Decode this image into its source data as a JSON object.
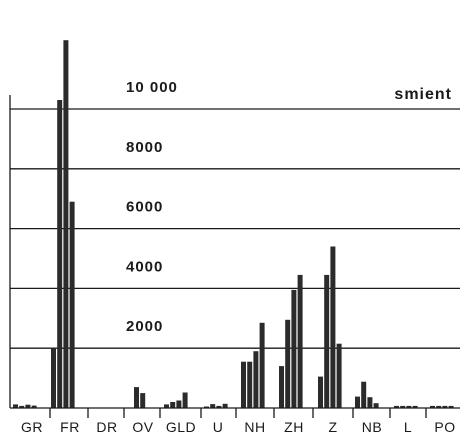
{
  "chart_data": {
    "type": "bar",
    "unit_label": "smient",
    "ylim": [
      0,
      11500
    ],
    "yticks": [
      2000,
      4000,
      6000,
      8000,
      10000
    ],
    "ytick_labels": [
      "2000",
      "4000",
      "6000",
      "8000",
      "10 000"
    ],
    "grid": true,
    "categories": [
      "GR",
      "FR",
      "DR",
      "OV",
      "GLD",
      "U",
      "NH",
      "ZH",
      "Z",
      "NB",
      "L",
      "PO"
    ],
    "groups": [
      {
        "category": "GR",
        "values": [
          120,
          70,
          110,
          80
        ]
      },
      {
        "category": "FR",
        "values": [
          2000,
          10300,
          12300,
          6900
        ]
      },
      {
        "category": "DR",
        "values": [
          0,
          0,
          0,
          0
        ]
      },
      {
        "category": "OV",
        "values": [
          700,
          500
        ]
      },
      {
        "category": "GLD",
        "values": [
          120,
          200,
          250,
          520
        ]
      },
      {
        "category": "U",
        "values": [
          50,
          130,
          70,
          140
        ]
      },
      {
        "category": "NH",
        "values": [
          1550,
          1550,
          1900,
          2850
        ]
      },
      {
        "category": "ZH",
        "values": [
          1400,
          2950,
          3950,
          4450
        ]
      },
      {
        "category": "Z",
        "values": [
          1050,
          4450,
          5400,
          2150
        ]
      },
      {
        "category": "NB",
        "values": [
          380,
          880,
          360,
          160
        ]
      },
      {
        "category": "L",
        "values": [
          70,
          70,
          70,
          70
        ]
      },
      {
        "category": "PO",
        "values": [
          70,
          70,
          70,
          70
        ]
      }
    ]
  }
}
